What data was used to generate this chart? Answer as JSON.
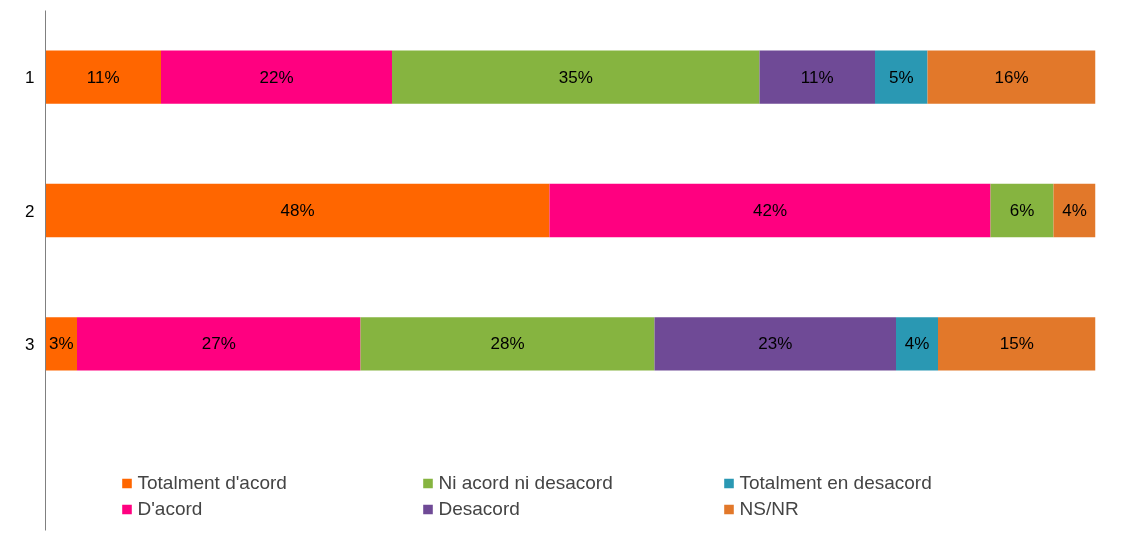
{
  "chart_data": {
    "type": "bar",
    "orientation": "horizontal",
    "stacked": true,
    "categories": [
      "1",
      "2",
      "3"
    ],
    "tick_labels": "y",
    "legend": "bottom",
    "series": [
      {
        "name": "Totalment d'acord",
        "color": "#ff6600",
        "values": [
          11,
          48,
          3
        ],
        "value_labels": [
          "11%",
          "48%",
          "3%"
        ]
      },
      {
        "name": "D'acord",
        "color": "#ff0080",
        "values": [
          22,
          42,
          27
        ],
        "value_labels": [
          "22%",
          "42%",
          "27%"
        ]
      },
      {
        "name": "Ni acord ni desacord",
        "color": "#86b440",
        "values": [
          35,
          6,
          28
        ],
        "value_labels": [
          "35%",
          "6%",
          "28%"
        ]
      },
      {
        "name": "Desacord",
        "color": "#6f4a96",
        "values": [
          11,
          null,
          23
        ],
        "value_labels": [
          "11%",
          null,
          "23%"
        ]
      },
      {
        "name": "Totalment en desacord",
        "color": "#2a98b3",
        "values": [
          5,
          null,
          4
        ],
        "value_labels": [
          "5%",
          null,
          "4%"
        ]
      },
      {
        "name": "NS/NR",
        "color": "#e2782a",
        "values": [
          16,
          4,
          15
        ],
        "value_labels": [
          "16%",
          "4%",
          "15%"
        ]
      }
    ]
  }
}
